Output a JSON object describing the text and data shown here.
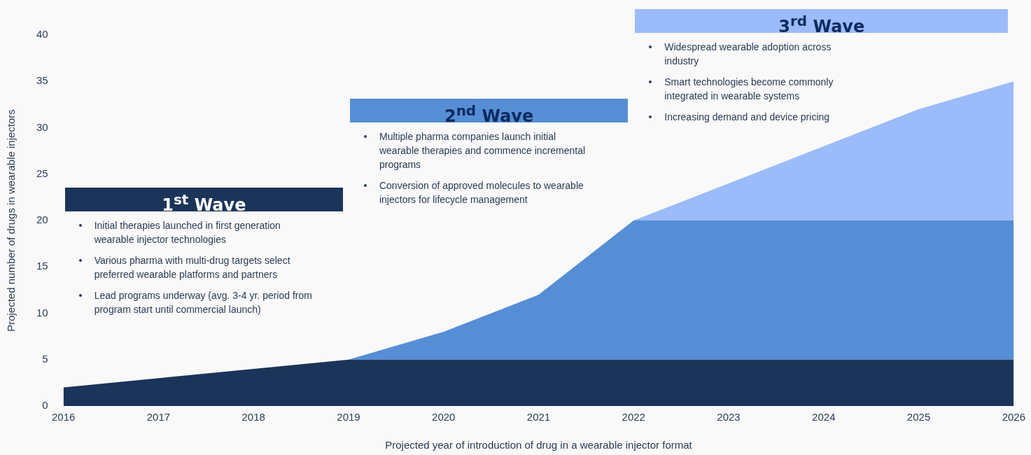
{
  "chart_data": {
    "type": "area",
    "stacked": true,
    "xlabel": "Projected year of introduction of drug in a wearable injector format",
    "ylabel": "Projected number of drugs in wearable injectors",
    "categories": [
      "2016",
      "2017",
      "2018",
      "2019",
      "2020",
      "2021",
      "2022",
      "2023",
      "2024",
      "2025",
      "2026"
    ],
    "ylim": [
      0,
      40
    ],
    "yticks": [
      0,
      5,
      10,
      15,
      20,
      25,
      30,
      35,
      40
    ],
    "series": [
      {
        "name": "1$^{st}$ Wave",
        "color": "#1b3459",
        "values": [
          2,
          3,
          4,
          5,
          5,
          5,
          5,
          5,
          5,
          5,
          5
        ]
      },
      {
        "name": "2$^{nd}$ Wave",
        "color": "#558ed5",
        "values": [
          null,
          null,
          null,
          0,
          3,
          7,
          15,
          15,
          15,
          15,
          15
        ]
      },
      {
        "name": "3$^{rd}$ Wave",
        "color": "#9bbbfa",
        "values": [
          null,
          null,
          null,
          null,
          null,
          null,
          0,
          4,
          8,
          12,
          15
        ]
      }
    ],
    "annotations": [
      "Initial therapies launched in first generation wearable injector technologies",
      "Various pharma with multi-drug targets select preferred wearable platforms and partners",
      "Lead programs underway (avg. 3-4 yr. period from program start until commercial launch)",
      "Multiple pharma companies launch initial wearable therapies and commence incremental programs",
      "Conversion of approved molecules to wearable injectors for lifecycle management",
      "Widespread wearable adoption across industry",
      "Smart technologies become commonly integrated in wearable systems",
      "Increasing demand and device pricing"
    ]
  }
}
